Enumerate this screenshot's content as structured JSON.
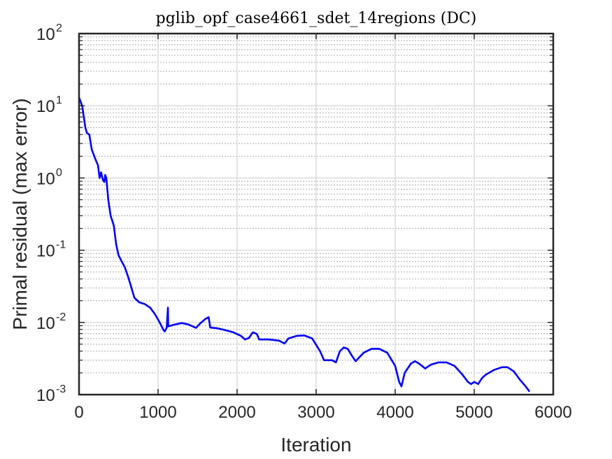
{
  "chart_data": {
    "type": "line",
    "title": "pglib_opf_case4661_sdet_14regions (DC)",
    "xlabel": "Iteration",
    "ylabel": "Primal residual (max error)",
    "xlim": [
      0,
      6000
    ],
    "ylim": [
      0.001,
      100
    ],
    "yscale": "log",
    "grid": true,
    "minor_grid": true,
    "line_color": "#0000ff",
    "x_ticks": [
      {
        "value": 0,
        "label": "0"
      },
      {
        "value": 1000,
        "label": "1000"
      },
      {
        "value": 2000,
        "label": "2000"
      },
      {
        "value": 3000,
        "label": "3000"
      },
      {
        "value": 4000,
        "label": "4000"
      },
      {
        "value": 5000,
        "label": "5000"
      },
      {
        "value": 6000,
        "label": "6000"
      }
    ],
    "y_ticks": [
      {
        "value": 0.001,
        "base": "10",
        "exp": "-3"
      },
      {
        "value": 0.01,
        "base": "10",
        "exp": "-2"
      },
      {
        "value": 0.1,
        "base": "10",
        "exp": "-1"
      },
      {
        "value": 1,
        "base": "10",
        "exp": "0"
      },
      {
        "value": 10,
        "base": "10",
        "exp": "1"
      },
      {
        "value": 100,
        "base": "10",
        "exp": "2"
      }
    ],
    "series": [
      {
        "values": [
          [
            0,
            13
          ],
          [
            40,
            10
          ],
          [
            60,
            7
          ],
          [
            80,
            5
          ],
          [
            100,
            4.2
          ],
          [
            130,
            4.0
          ],
          [
            160,
            2.5
          ],
          [
            200,
            1.9
          ],
          [
            240,
            1.5
          ],
          [
            260,
            1.0
          ],
          [
            280,
            1.2
          ],
          [
            300,
            0.95
          ],
          [
            320,
            0.88
          ],
          [
            330,
            1.1
          ],
          [
            345,
            1.0
          ],
          [
            370,
            0.5
          ],
          [
            400,
            0.3
          ],
          [
            440,
            0.22
          ],
          [
            470,
            0.12
          ],
          [
            500,
            0.085
          ],
          [
            540,
            0.07
          ],
          [
            580,
            0.058
          ],
          [
            620,
            0.043
          ],
          [
            660,
            0.031
          ],
          [
            700,
            0.022
          ],
          [
            760,
            0.019
          ],
          [
            830,
            0.018
          ],
          [
            900,
            0.016
          ],
          [
            960,
            0.013
          ],
          [
            1020,
            0.01
          ],
          [
            1070,
            0.0078
          ],
          [
            1085,
            0.0075
          ],
          [
            1110,
            0.0085
          ],
          [
            1125,
            0.016
          ],
          [
            1128,
            0.0088
          ],
          [
            1200,
            0.0093
          ],
          [
            1300,
            0.0098
          ],
          [
            1380,
            0.0094
          ],
          [
            1480,
            0.0084
          ],
          [
            1530,
            0.0096
          ],
          [
            1600,
            0.0112
          ],
          [
            1640,
            0.0118
          ],
          [
            1660,
            0.0085
          ],
          [
            1750,
            0.0083
          ],
          [
            1850,
            0.0078
          ],
          [
            1950,
            0.0073
          ],
          [
            2050,
            0.0065
          ],
          [
            2100,
            0.0058
          ],
          [
            2150,
            0.0061
          ],
          [
            2200,
            0.0073
          ],
          [
            2250,
            0.0069
          ],
          [
            2280,
            0.0058
          ],
          [
            2400,
            0.0058
          ],
          [
            2530,
            0.0056
          ],
          [
            2600,
            0.0051
          ],
          [
            2650,
            0.006
          ],
          [
            2750,
            0.0065
          ],
          [
            2850,
            0.0066
          ],
          [
            2950,
            0.006
          ],
          [
            3050,
            0.004
          ],
          [
            3100,
            0.003
          ],
          [
            3200,
            0.003
          ],
          [
            3250,
            0.0028
          ],
          [
            3300,
            0.004
          ],
          [
            3350,
            0.0045
          ],
          [
            3400,
            0.0043
          ],
          [
            3450,
            0.0035
          ],
          [
            3500,
            0.0029
          ],
          [
            3600,
            0.0038
          ],
          [
            3700,
            0.0043
          ],
          [
            3800,
            0.0043
          ],
          [
            3900,
            0.0038
          ],
          [
            4000,
            0.0025
          ],
          [
            4050,
            0.0015
          ],
          [
            4080,
            0.0013
          ],
          [
            4120,
            0.002
          ],
          [
            4200,
            0.0027
          ],
          [
            4250,
            0.0029
          ],
          [
            4300,
            0.0027
          ],
          [
            4380,
            0.0023
          ],
          [
            4450,
            0.0026
          ],
          [
            4550,
            0.0028
          ],
          [
            4650,
            0.0028
          ],
          [
            4750,
            0.0025
          ],
          [
            4850,
            0.0019
          ],
          [
            4920,
            0.0015
          ],
          [
            4960,
            0.0014
          ],
          [
            5000,
            0.0015
          ],
          [
            5050,
            0.0014
          ],
          [
            5100,
            0.0017
          ],
          [
            5150,
            0.0019
          ],
          [
            5250,
            0.0022
          ],
          [
            5350,
            0.0024
          ],
          [
            5420,
            0.0024
          ],
          [
            5500,
            0.0021
          ],
          [
            5580,
            0.0016
          ],
          [
            5650,
            0.0013
          ],
          [
            5700,
            0.0011
          ]
        ]
      }
    ]
  }
}
